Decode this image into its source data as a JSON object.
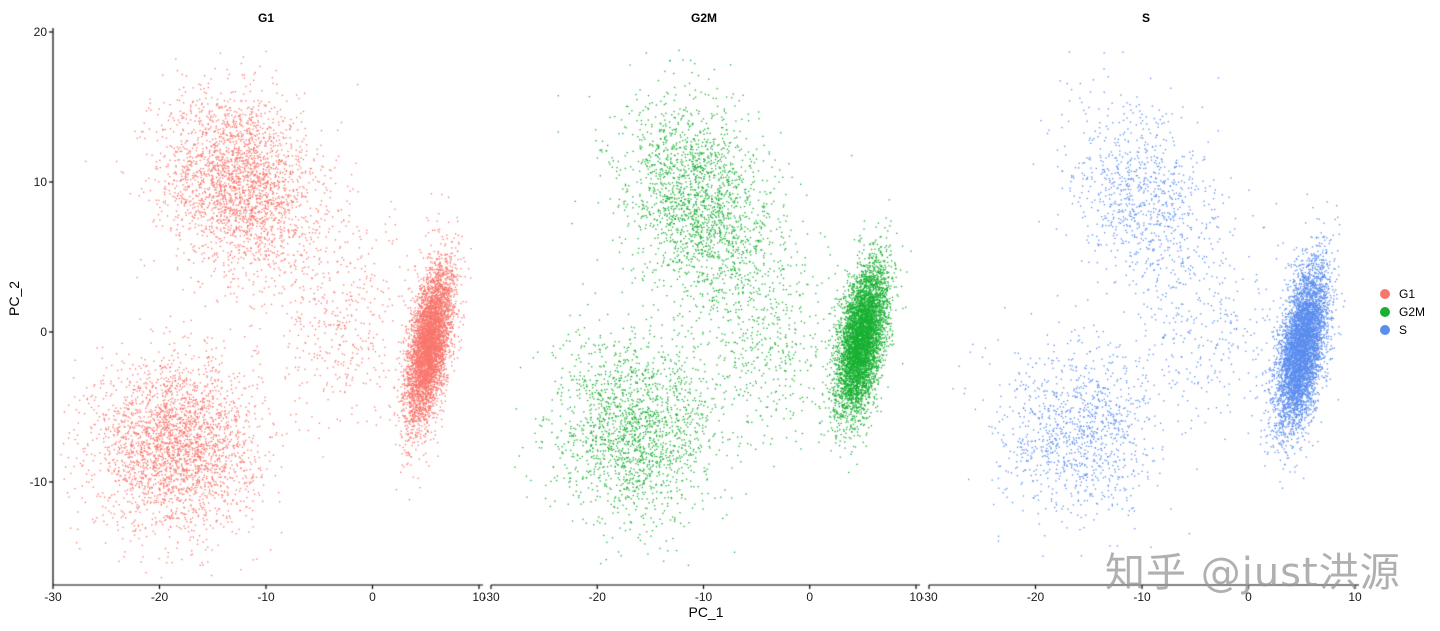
{
  "chart_data": {
    "type": "scatter",
    "title": "",
    "facet_by": "Phase",
    "xlabel": "PC_1",
    "ylabel": "PC_2",
    "xlim": [
      -30,
      10
    ],
    "ylim": [
      -17,
      20.5
    ],
    "x_ticks": [
      "-30",
      "-20",
      "-10",
      "0",
      "10"
    ],
    "y_ticks": [
      "20",
      "10",
      "0",
      "-10"
    ],
    "grid": false,
    "legend_position": "right",
    "panels": [
      {
        "name": "G1",
        "color": "#F8766D",
        "clusters": [
          {
            "label": "upper-left arm",
            "cx": -12.5,
            "cy": 10,
            "sx": 3.5,
            "sy": 3.0,
            "n": 2600
          },
          {
            "label": "lower-left arm",
            "cx": -18.5,
            "cy": -7.5,
            "sx": 3.8,
            "sy": 2.8,
            "n": 2800
          },
          {
            "label": "dense right cluster",
            "cx": 5.3,
            "cy": -0.8,
            "sx": 0.9,
            "sy": 2.6,
            "n": 5000
          },
          {
            "label": "bridge",
            "cx": -3,
            "cy": 1,
            "sx": 3.5,
            "sy": 3.5,
            "n": 450
          }
        ]
      },
      {
        "name": "G2M",
        "color": "#19B033",
        "clusters": [
          {
            "label": "upper-left arm",
            "cx": -10.5,
            "cy": 8.5,
            "sx": 3.3,
            "sy": 3.5,
            "n": 2000
          },
          {
            "label": "lower-left arm",
            "cx": -16.5,
            "cy": -6.5,
            "sx": 3.8,
            "sy": 3.0,
            "n": 1800
          },
          {
            "label": "dense right cluster",
            "cx": 4.8,
            "cy": -0.5,
            "sx": 1.0,
            "sy": 2.5,
            "n": 5500
          },
          {
            "label": "bridge",
            "cx": -4,
            "cy": 0,
            "sx": 4,
            "sy": 3.5,
            "n": 500
          }
        ]
      },
      {
        "name": "S",
        "color": "#5B8DEE",
        "clusters": [
          {
            "label": "upper-left arm",
            "cx": -10,
            "cy": 9,
            "sx": 3.2,
            "sy": 3.2,
            "n": 900
          },
          {
            "label": "lower-left arm",
            "cx": -16,
            "cy": -6.5,
            "sx": 3.8,
            "sy": 2.8,
            "n": 1100
          },
          {
            "label": "dense right cluster",
            "cx": 5.0,
            "cy": -1.0,
            "sx": 1.0,
            "sy": 2.7,
            "n": 5500
          },
          {
            "label": "bridge",
            "cx": -4,
            "cy": 0,
            "sx": 4,
            "sy": 3.5,
            "n": 300
          }
        ]
      }
    ],
    "legend": [
      {
        "label": "G1",
        "color": "#F8766D"
      },
      {
        "label": "G2M",
        "color": "#19B033"
      },
      {
        "label": "S",
        "color": "#5B8DEE"
      }
    ]
  },
  "panels_titles": [
    "G1",
    "G2M",
    "S"
  ],
  "watermark": "知乎 @just洪源"
}
